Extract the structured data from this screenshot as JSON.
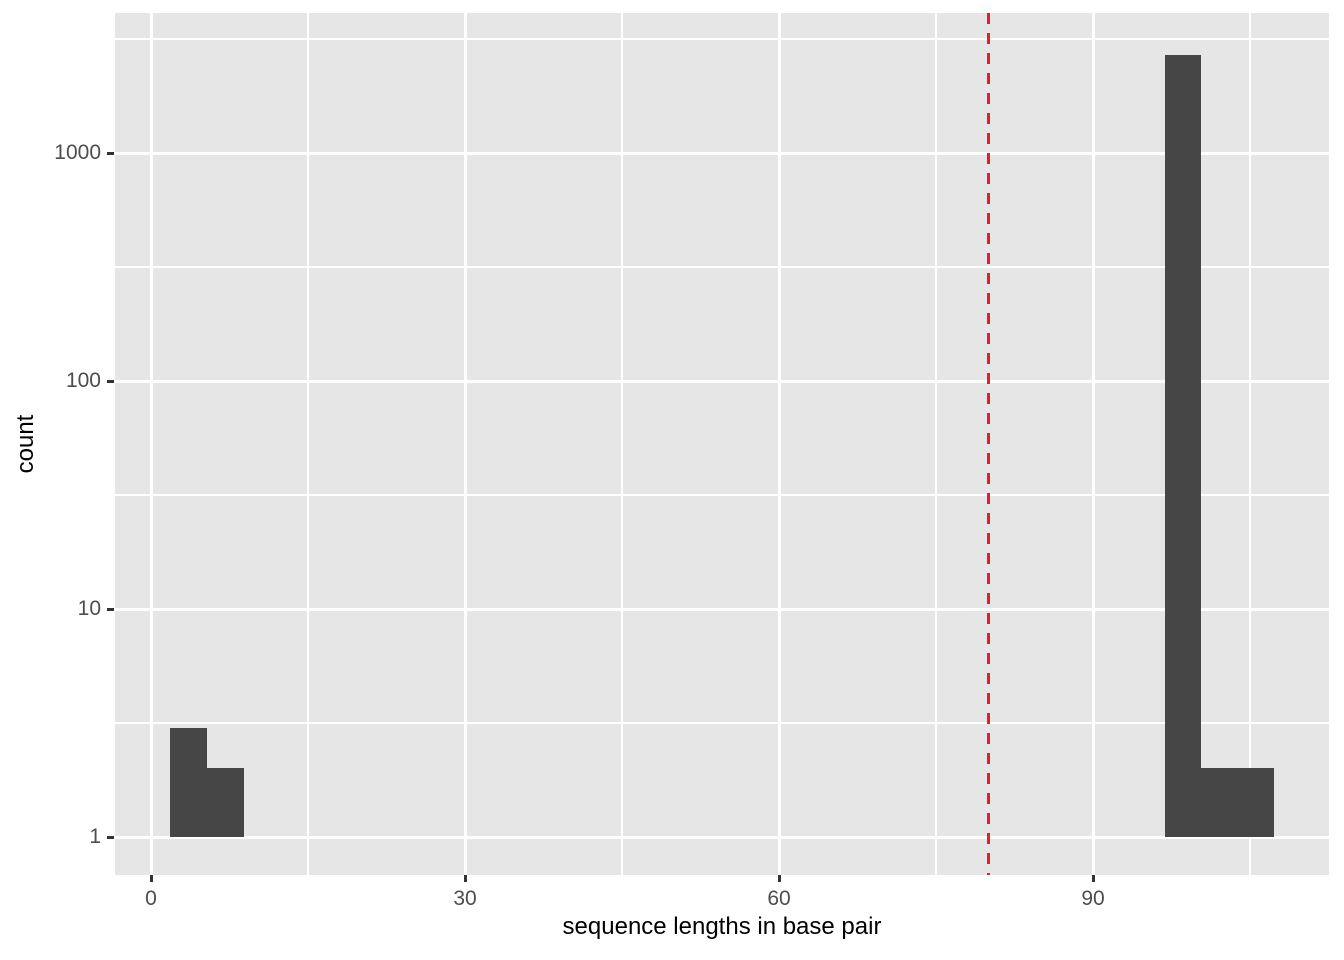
{
  "chart_data": {
    "type": "bar",
    "subtype": "histogram",
    "title": "",
    "xlabel": "sequence lengths in base pair",
    "ylabel": "count",
    "y_scale": "log10",
    "grid": true,
    "legend_position": "none",
    "x_domain": [
      -3.44,
      112.55
    ],
    "y_domain_log10": [
      -0.1667,
      3.614
    ],
    "x_ticks": [
      {
        "value": 0,
        "label": "0"
      },
      {
        "value": 30,
        "label": "30"
      },
      {
        "value": 60,
        "label": "60"
      },
      {
        "value": 90,
        "label": "90"
      }
    ],
    "x_minor_ticks": [
      15,
      45,
      75,
      105
    ],
    "y_ticks": [
      {
        "value": 1,
        "label": "1"
      },
      {
        "value": 10,
        "label": "10"
      },
      {
        "value": 100,
        "label": "100"
      },
      {
        "value": 1000,
        "label": "1000"
      }
    ],
    "y_minor_ticks": [
      3.1623,
      31.623,
      316.23,
      3162.3
    ],
    "baseline_count": 1,
    "bars": [
      {
        "x0": 1.8,
        "x1": 5.35,
        "count": 3
      },
      {
        "x0": 5.35,
        "x1": 8.9,
        "count": 2
      },
      {
        "x0": 96.9,
        "x1": 100.3,
        "count": 2700
      },
      {
        "x0": 100.3,
        "x1": 107.3,
        "count": 2
      }
    ],
    "vline": {
      "x": 80,
      "style": "dashed",
      "color": "#ED1B24"
    },
    "colors": {
      "panel_bg": "#E6E6E6",
      "bar_fill": "#464646",
      "gridline": "#FFFFFF",
      "tick_label": "#4D4D4D",
      "axis_title": "#000000",
      "tick_mark": "#333333"
    }
  }
}
